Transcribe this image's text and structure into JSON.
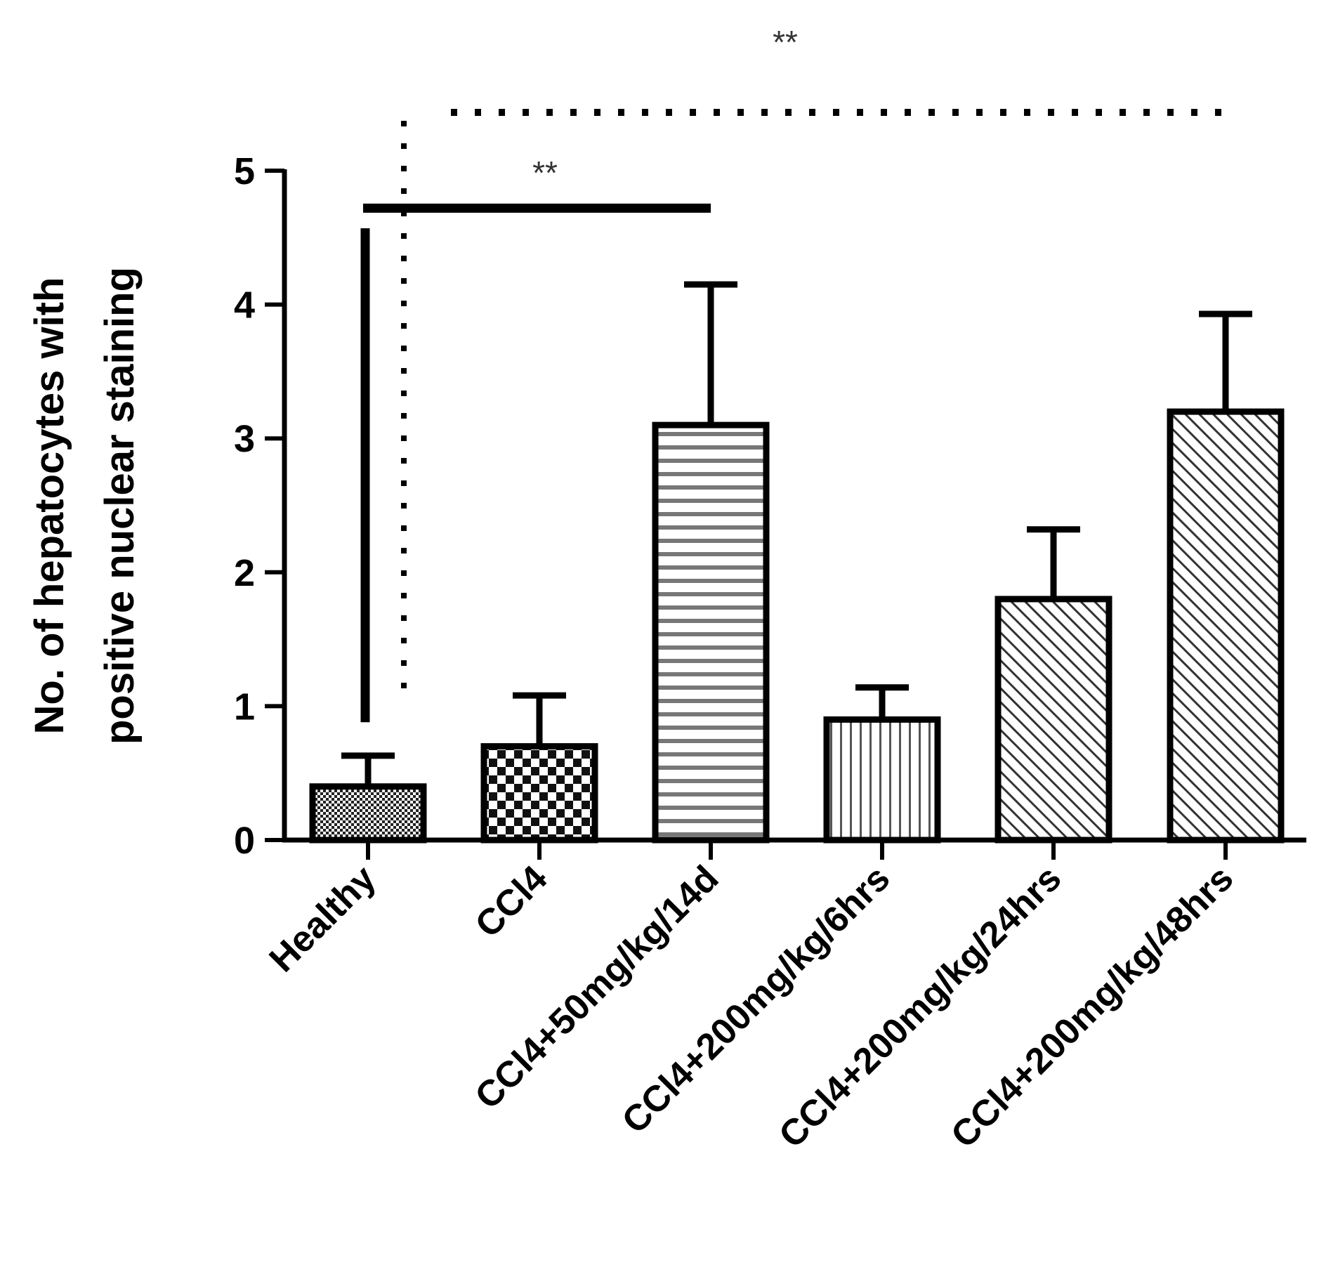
{
  "chart_data": {
    "type": "bar",
    "title": "",
    "xlabel": "",
    "ylabel_lines": [
      "No. of hepatocytes with",
      "positive nuclear staining"
    ],
    "ylim": [
      0,
      5
    ],
    "yticks": [
      "0",
      "1",
      "2",
      "3",
      "4",
      "5"
    ],
    "categories": [
      "Healthy",
      "CCl4",
      "CCl4+50mg/kg/14d",
      "CCl4+200mg/kg/6hrs",
      "CCl4+200mg/kg/24hrs",
      "CCl4+200mg/kg/48hrs"
    ],
    "values": [
      0.4,
      0.7,
      3.1,
      0.9,
      1.8,
      3.2
    ],
    "error_upper": [
      0.63,
      1.08,
      4.15,
      1.14,
      2.32,
      3.93
    ],
    "patterns": [
      "fine-checker",
      "checker",
      "horizontal-lines",
      "vertical-lines",
      "diagonal-lines",
      "diagonal-lines"
    ],
    "significance": [
      {
        "label": "**",
        "style": "solid",
        "from_category": 0,
        "to_category": 2,
        "y": 4.72
      },
      {
        "label": "**",
        "style": "dotted",
        "from_category": 0,
        "to_category": 5,
        "y": 5.42
      }
    ]
  }
}
